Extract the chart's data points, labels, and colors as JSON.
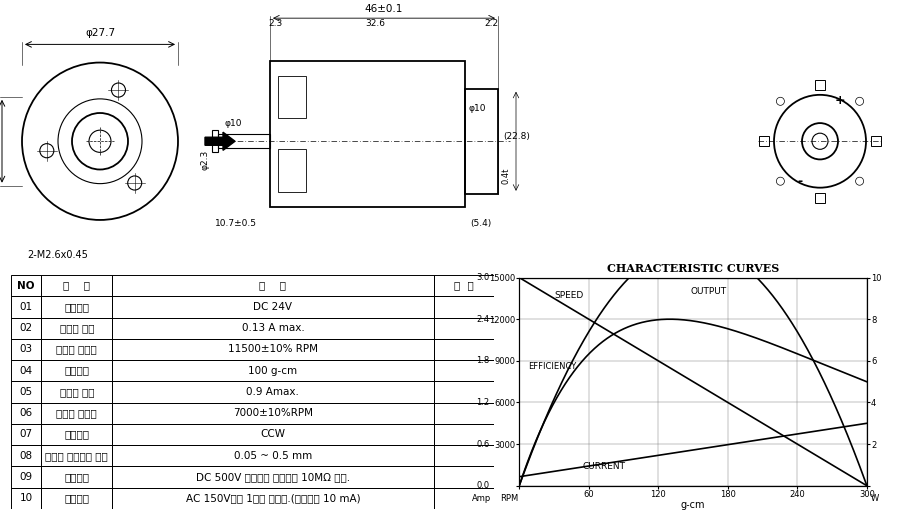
{
  "table_data": [
    [
      "NO",
      "항    목",
      "사    양",
      "비  고"
    ],
    [
      "01",
      "사용전압",
      "DC 24V",
      ""
    ],
    [
      "02",
      "무부하 전류",
      "0.13 A max.",
      ""
    ],
    [
      "03",
      "무부하 회전수",
      "11500±10% RPM",
      ""
    ],
    [
      "04",
      "정격부하",
      "100 g-cm",
      ""
    ],
    [
      "05",
      "부하시 전류",
      "0.9 Amax.",
      ""
    ],
    [
      "06",
      "부하시 회전수",
      "7000±10%RPM",
      ""
    ],
    [
      "07",
      "회전방향",
      "CCW",
      ""
    ],
    [
      "08",
      "출력축 트러스트 범위",
      "0.05 ~ 0.5 mm",
      ""
    ],
    [
      "09",
      "절연저항",
      "DC 500V 메가기로 측정하여 10MΩ 이상.",
      ""
    ],
    [
      "10",
      "절연내압",
      "AC 150V에서 1초간 견력스.(누설전류 10 mA)",
      ""
    ]
  ],
  "curve_title": "CHARACTERISTIC CURVES",
  "x_axis_label": "g-cm",
  "bg_color": "#ffffff"
}
